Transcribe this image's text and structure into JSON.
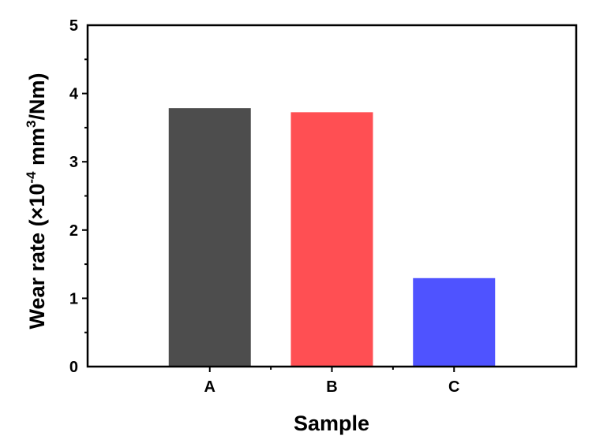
{
  "chart_data": {
    "type": "bar",
    "categories": [
      "A",
      "B",
      "C"
    ],
    "values": [
      3.78,
      3.72,
      1.29
    ],
    "colors": [
      "#4d4d4d",
      "#ff4f53",
      "#4f53ff"
    ],
    "xlabel": "Sample",
    "ylabel": {
      "prefix": "Wear rate (×10",
      "exp1": "-4",
      "middle": " mm",
      "exp2": "3",
      "suffix": "/Nm)"
    },
    "ylim": [
      0,
      5
    ],
    "yticks": [
      "0",
      "1",
      "2",
      "3",
      "4",
      "5"
    ],
    "grid": false,
    "legend": false
  }
}
